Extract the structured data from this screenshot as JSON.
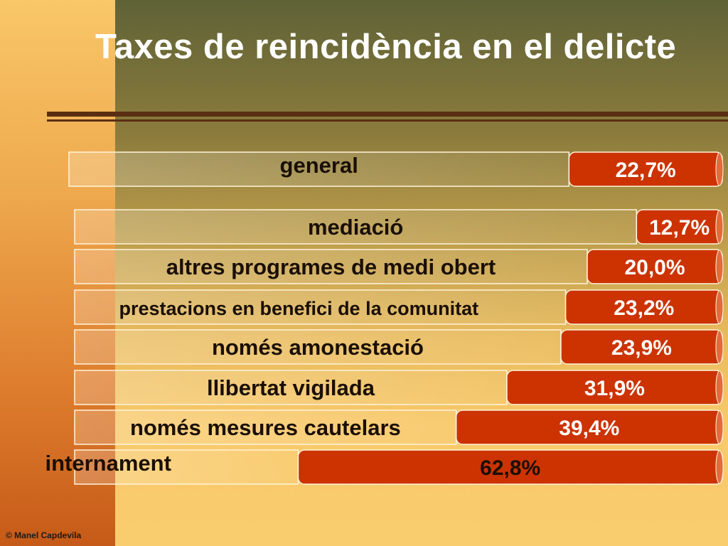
{
  "title": "Taxes de reincidència en el delicte",
  "credit": "© Manel Capdevila",
  "colors": {
    "bar_fill": "#cc3300",
    "label_box_stroke": "#fff4dc",
    "label_text": "#1a0f05",
    "value_text": "#ffffff"
  },
  "chart_data": {
    "type": "bar",
    "orientation": "horizontal",
    "title": "Taxes de reincidència en el delicte",
    "categories": [
      "general",
      "mediació",
      "altres programes de medi obert",
      "prestacions en benefici de la comunitat",
      "només amonestació",
      "llibertat vigilada",
      "només mesures cautelars",
      "internament"
    ],
    "values": [
      22.7,
      12.7,
      20.0,
      23.2,
      23.9,
      31.9,
      39.4,
      62.8
    ],
    "value_labels": [
      "22,7%",
      "12,7%",
      "20,0%",
      "23,2%",
      "23,9%",
      "31,9%",
      "39,4%",
      "62,8%"
    ],
    "xlim": [
      0,
      100
    ],
    "grid": false,
    "legend": "none"
  }
}
